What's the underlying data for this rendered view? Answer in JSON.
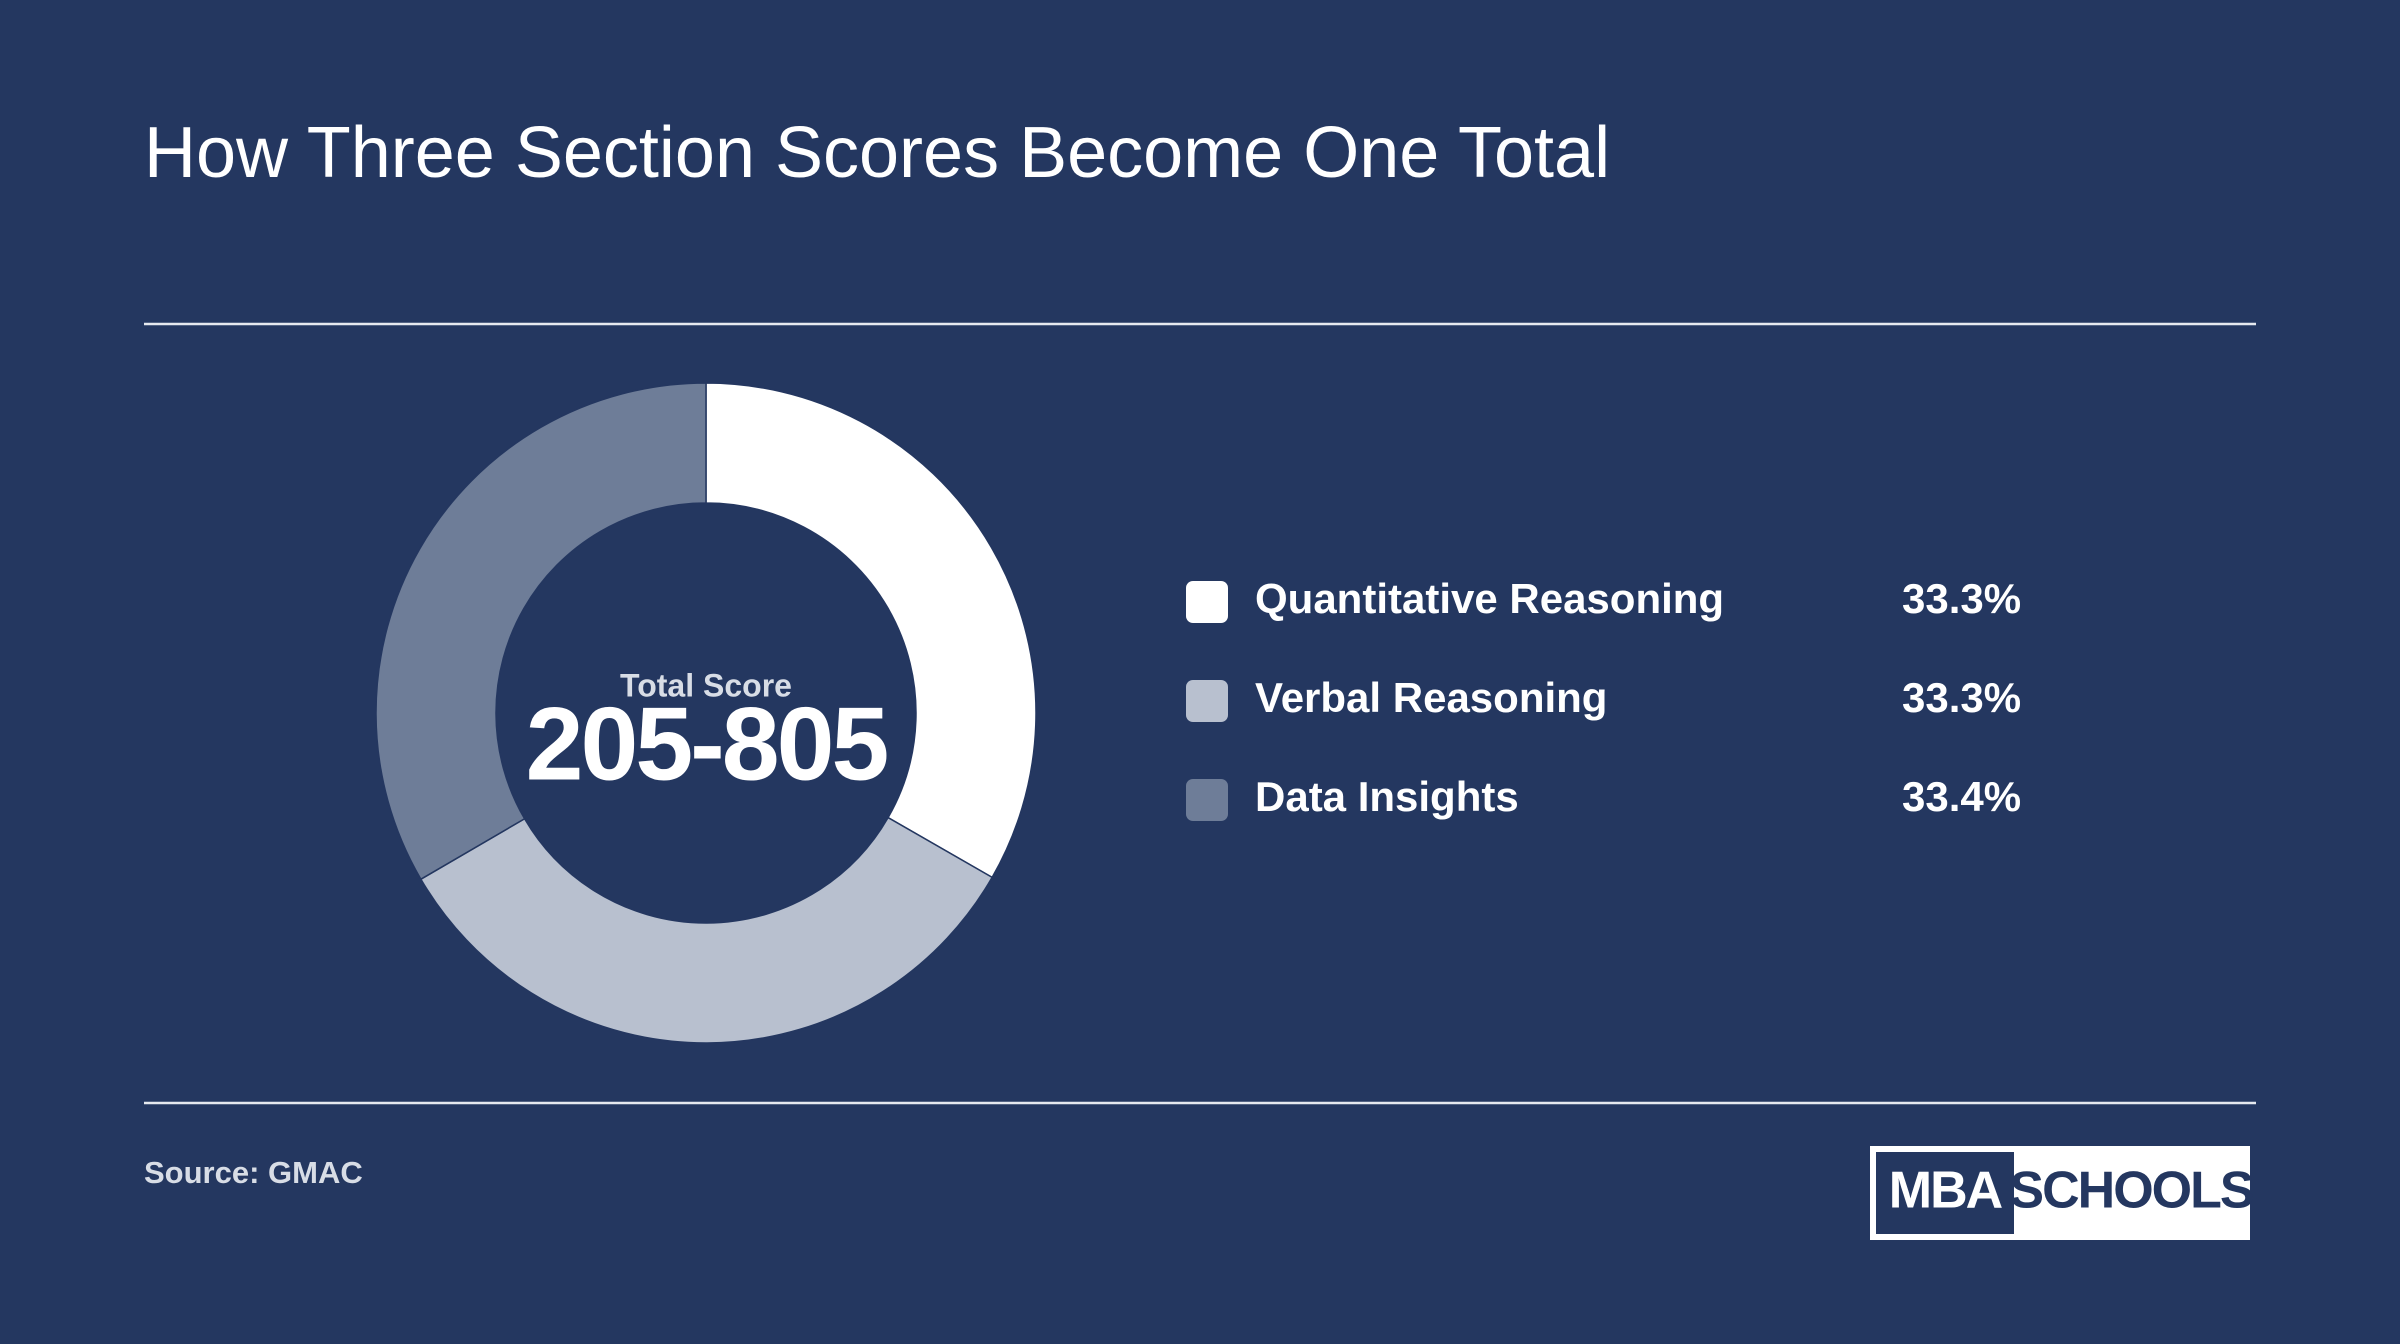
{
  "chart_data": {
    "type": "pie",
    "title": "How Three Section Scores Become One Total",
    "center_label": "Total Score",
    "center_value": "205-805",
    "categories": [
      "Quantitative Reasoning",
      "Verbal Reasoning",
      "Data Insights"
    ],
    "values": [
      33.3,
      33.3,
      33.4
    ],
    "value_labels": [
      "33.3%",
      "33.3%",
      "33.4%"
    ],
    "colors": [
      "#ffffff",
      "#b8c0cf",
      "#6e7d98"
    ],
    "source": "Source: GMAC"
  },
  "logo": {
    "left": "MBA",
    "right": "SCHOOLS"
  }
}
